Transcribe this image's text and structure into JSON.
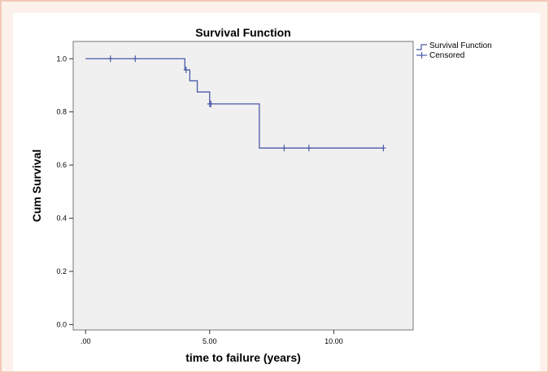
{
  "chart_data": {
    "type": "line",
    "title": "Survival Function",
    "xlabel": "time to failure (years)",
    "ylabel": "Cum Survival",
    "xlim": [
      -0.5,
      13.2
    ],
    "ylim": [
      -0.02,
      1.065
    ],
    "x_ticks": [
      0,
      5,
      10
    ],
    "x_tick_labels": [
      ".00",
      "5.00",
      "10.00"
    ],
    "y_ticks": [
      0.0,
      0.2,
      0.4,
      0.6,
      0.8,
      1.0
    ],
    "y_tick_labels": [
      "0.0",
      "0.2",
      "0.4",
      "0.6",
      "0.8",
      "1.0"
    ],
    "grid": false,
    "legend_position": "top-right",
    "series": [
      {
        "name": "Survival Function",
        "kind": "step",
        "color": "#4a5aa8",
        "x": [
          0,
          4.0,
          4.2,
          4.5,
          5.0,
          7.0,
          12.0
        ],
        "y": [
          1.0,
          0.958,
          0.917,
          0.875,
          0.83,
          0.664,
          0.664
        ]
      },
      {
        "name": "Censored",
        "kind": "marker",
        "color": "#4a5aa8",
        "x": [
          1.0,
          2.0,
          4.05,
          5.0,
          5.05,
          8.0,
          9.0,
          12.0
        ],
        "y": [
          1.0,
          1.0,
          0.958,
          0.83,
          0.83,
          0.664,
          0.664,
          0.664
        ]
      }
    ]
  }
}
